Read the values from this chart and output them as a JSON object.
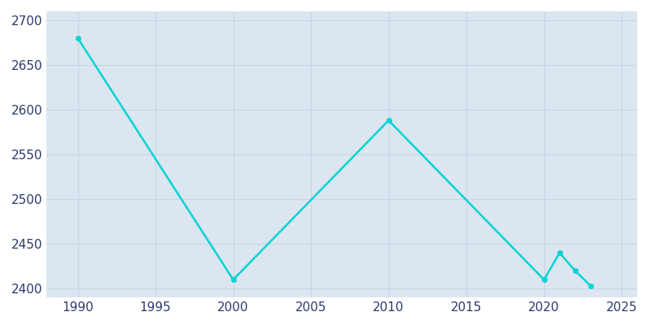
{
  "years": [
    1990,
    2000,
    2010,
    2020,
    2021,
    2022,
    2023
  ],
  "population": [
    2680,
    2410,
    2588,
    2410,
    2440,
    2420,
    2403
  ],
  "line_color": "#00d4d4",
  "marker_color": "#00d4d4",
  "figure_bg_color": "#ffffff",
  "plot_bg_color": "#dce6f0",
  "xlabel": "",
  "ylabel": "",
  "xlim": [
    1988,
    2026
  ],
  "ylim": [
    2390,
    2710
  ],
  "xticks": [
    1990,
    1995,
    2000,
    2005,
    2010,
    2015,
    2020,
    2025
  ],
  "yticks": [
    2400,
    2450,
    2500,
    2550,
    2600,
    2650,
    2700
  ],
  "grid_color": "#c8d5e8",
  "tick_color": "#2b3a6e",
  "tick_fontsize": 11,
  "line_width": 1.8,
  "marker_size": 4
}
